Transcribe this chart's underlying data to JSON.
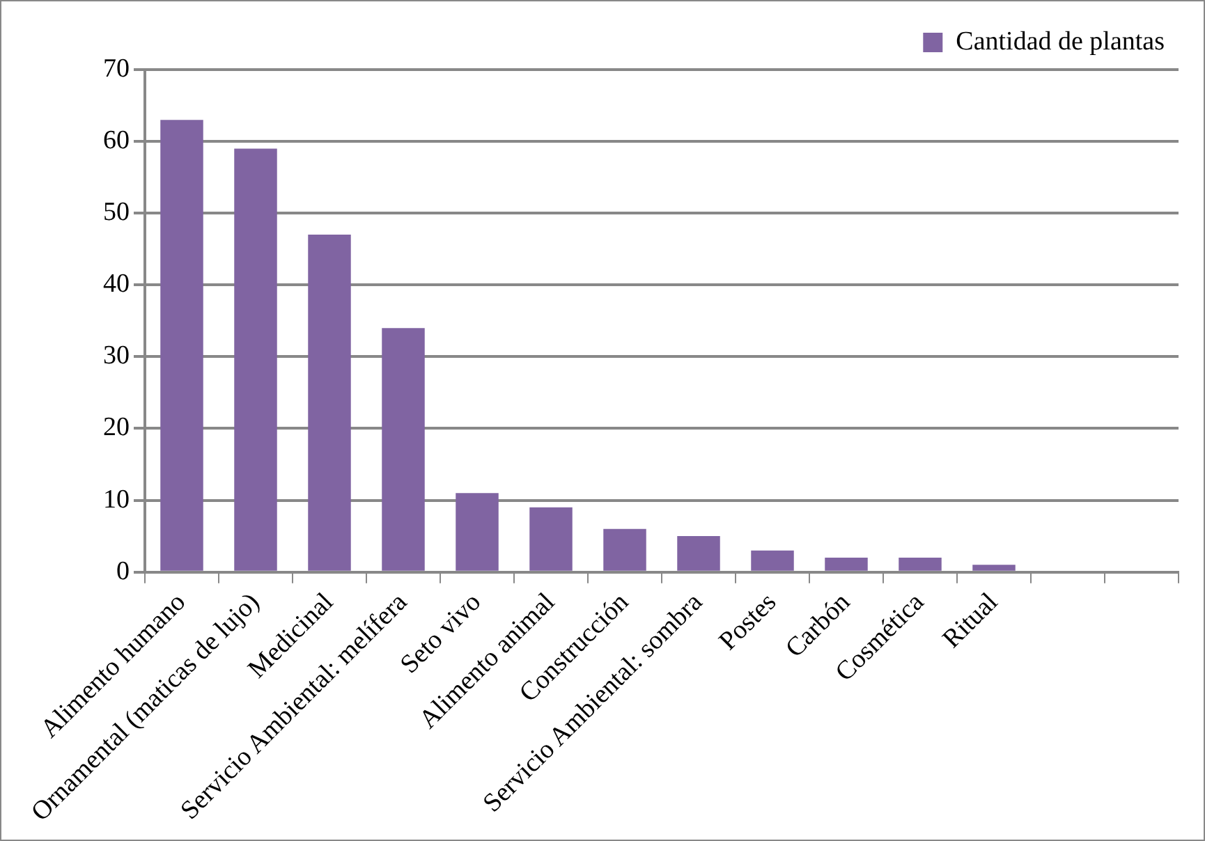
{
  "chart_data": {
    "type": "bar",
    "categories": [
      "Alimento humano",
      "Ornamental (maticas de lujo)",
      "Medicinal",
      "Servicio Ambiental: melífera",
      "Seto vivo",
      "Alimento animal",
      "Construcción",
      "Servicio Ambiental: sombra",
      "Postes",
      "Carbón",
      "Cosmética",
      "Ritual",
      null,
      null
    ],
    "series": [
      {
        "name": "Cantidad de plantas",
        "color": "#8064a2",
        "values": [
          63,
          59,
          47,
          34,
          11,
          9,
          6,
          5,
          3,
          2,
          2,
          1,
          null,
          null
        ]
      }
    ],
    "ylim": [
      0,
      70
    ],
    "yticks": [
      0,
      10,
      20,
      30,
      40,
      50,
      60,
      70
    ],
    "grid": "y",
    "legend": "top right"
  }
}
